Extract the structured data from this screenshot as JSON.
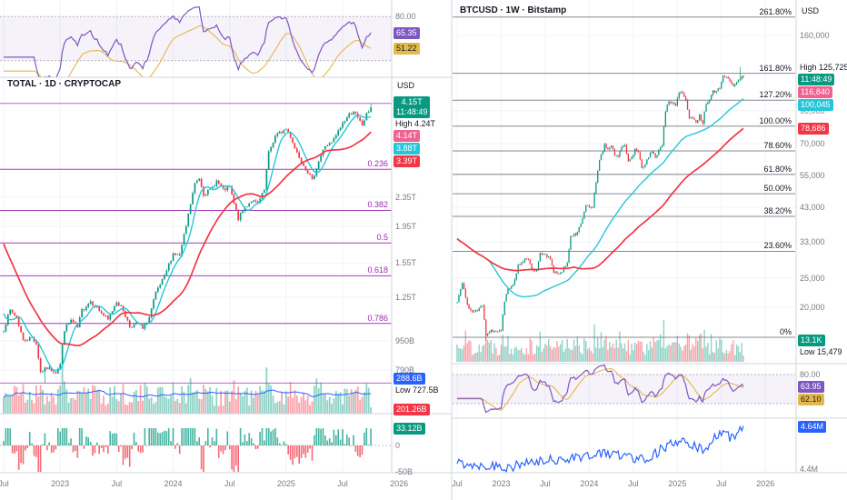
{
  "colors": {
    "up": "#089981",
    "down": "#f23645",
    "volume_up": "rgba(8,153,129,0.45)",
    "volume_down": "rgba(242,54,69,0.45)",
    "delta_up": "rgba(8,153,129,0.75)",
    "delta_down": "rgba(242,54,69,0.75)",
    "ma_fast": "#26c6da",
    "ma_slow": "#f23645",
    "volume_ma": "#2962ff",
    "rsi_line": "#7e57c2",
    "rsi_ma": "#e3b94c",
    "rsi_band": "rgba(126,87,194,0.08)",
    "fib_left": "#9c27b0",
    "fib_right": "#6a6d78",
    "fib_right_text": "#131722",
    "badge_green": "#089981",
    "badge_pink": "#f06292",
    "badge_cyan": "#26c6da",
    "badge_red": "#f23645",
    "badge_blue": "#2962ff",
    "badge_purple": "#7e57c2",
    "badge_yellow": "#e3b94c",
    "badge_teal": "#089981",
    "grid": "#f0f3fa",
    "border": "#d1d4dc",
    "text": "#131722",
    "muted": "#787b86",
    "line_pane": "#2962ff",
    "dashed": "#9598a1"
  },
  "chart_data": [
    {
      "id": "total",
      "type": "candlestick",
      "title": "TOTAL · 1D · CRYPTOCAP",
      "symbol": "TOTAL",
      "interval": "1D",
      "exchange": "CRYPTOCAP",
      "currency": "USD",
      "scale": "log",
      "unit": "trillions USD",
      "y_domain": [
        0.6,
        5.0
      ],
      "weeks": 170,
      "price_anchors": [
        [
          0,
          1.02
        ],
        [
          3,
          1.15
        ],
        [
          6,
          1.1
        ],
        [
          9,
          0.95
        ],
        [
          13,
          0.97
        ],
        [
          15,
          0.93
        ],
        [
          17,
          0.78
        ],
        [
          20,
          0.8
        ],
        [
          24,
          0.78
        ],
        [
          26,
          0.82
        ],
        [
          28,
          1.02
        ],
        [
          31,
          1.08
        ],
        [
          34,
          1.03
        ],
        [
          36,
          1.15
        ],
        [
          40,
          1.22
        ],
        [
          44,
          1.15
        ],
        [
          48,
          1.08
        ],
        [
          52,
          1.22
        ],
        [
          55,
          1.15
        ],
        [
          58,
          1.04
        ],
        [
          62,
          1.06
        ],
        [
          64,
          1.02
        ],
        [
          67,
          1.1
        ],
        [
          70,
          1.28
        ],
        [
          74,
          1.42
        ],
        [
          78,
          1.65
        ],
        [
          81,
          1.62
        ],
        [
          84,
          1.95
        ],
        [
          88,
          2.55
        ],
        [
          90,
          2.65
        ],
        [
          92,
          2.4
        ],
        [
          95,
          2.45
        ],
        [
          98,
          2.6
        ],
        [
          101,
          2.45
        ],
        [
          104,
          2.5
        ],
        [
          106,
          2.25
        ],
        [
          108,
          2.05
        ],
        [
          111,
          2.2
        ],
        [
          114,
          2.3
        ],
        [
          117,
          2.25
        ],
        [
          120,
          2.45
        ],
        [
          122,
          3.1
        ],
        [
          125,
          3.45
        ],
        [
          128,
          3.55
        ],
        [
          130,
          3.6
        ],
        [
          132,
          3.45
        ],
        [
          134,
          3.2
        ],
        [
          137,
          2.95
        ],
        [
          140,
          2.75
        ],
        [
          142,
          2.6
        ],
        [
          145,
          2.95
        ],
        [
          148,
          3.25
        ],
        [
          151,
          3.3
        ],
        [
          154,
          3.55
        ],
        [
          156,
          3.75
        ],
        [
          159,
          3.95
        ],
        [
          161,
          4.05
        ],
        [
          163,
          3.85
        ],
        [
          165,
          3.7
        ],
        [
          167,
          3.95
        ],
        [
          169,
          4.15
        ]
      ],
      "ma_prehistory": [
        [
          0,
          2.9
        ],
        [
          10,
          2.2
        ],
        [
          20,
          1.4
        ],
        [
          29,
          1.05
        ]
      ],
      "high": {
        "label": "High",
        "text": "4.24T",
        "price": 4.24,
        "week": 169
      },
      "low": {
        "label": "Low",
        "text": "727.5B",
        "price": 0.7275,
        "week": 19
      },
      "last": {
        "text": "4.15T",
        "price": 4.15,
        "countdown": "11:48:49"
      },
      "price_line": {
        "text": "4.14T",
        "price": 4.14
      },
      "ma_fast": {
        "text": "3.88T",
        "price": 3.88,
        "window": 7
      },
      "ma_slow": {
        "text": "3.39T",
        "price": 3.39,
        "window": 28
      },
      "volume": {
        "ma_badge": "288.6B",
        "extra_badge": "201.26B"
      },
      "ticks": [
        [
          "2.35T",
          2.35
        ],
        [
          "1.95T",
          1.95
        ],
        [
          "1.55T",
          1.55
        ],
        [
          "1.25T",
          1.25
        ],
        [
          "950B",
          0.95
        ],
        [
          "790B",
          0.79
        ]
      ],
      "fib": {
        "levels": [
          [
            "0.236",
            2.8
          ],
          [
            "0.382",
            2.16
          ],
          [
            "0.5",
            1.76
          ],
          [
            "0.618",
            1.43
          ],
          [
            "0.786",
            1.06
          ]
        ],
        "edges": [
          4.24,
          0.7275
        ]
      },
      "rsi": {
        "tick": "80.00",
        "value": 65.35,
        "value_text": "65.35",
        "ma_value": 51.22,
        "ma_text": "51.22"
      },
      "delta": {
        "badge_text": "33.12B",
        "badge_value": 33.12,
        "zero_tick": "0",
        "min_tick": "-50B"
      },
      "time_labels": [
        [
          "Jul",
          0
        ],
        [
          "2023",
          26
        ],
        [
          "Jul",
          52
        ],
        [
          "2024",
          78
        ],
        [
          "Jul",
          104
        ],
        [
          "2025",
          130
        ],
        [
          "Jul",
          156
        ],
        [
          "2026",
          182
        ]
      ]
    },
    {
      "id": "btcusd",
      "type": "candlestick",
      "title": "BTCUSD · 1W · Bitstamp",
      "symbol": "BTCUSD",
      "interval": "1W",
      "exchange": "Bitstamp",
      "currency": "USD",
      "scale": "log",
      "unit": "thousands USD",
      "y_domain": [
        13.0,
        210
      ],
      "weeks": 170,
      "price_anchors": [
        [
          0,
          20.8
        ],
        [
          3,
          24.0
        ],
        [
          5,
          21.5
        ],
        [
          7,
          19.8
        ],
        [
          9,
          19.3
        ],
        [
          12,
          19.5
        ],
        [
          15,
          20.5
        ],
        [
          17,
          16.2
        ],
        [
          20,
          16.8
        ],
        [
          23,
          16.6
        ],
        [
          26,
          16.6
        ],
        [
          28,
          21.0
        ],
        [
          30,
          23.2
        ],
        [
          33,
          23.5
        ],
        [
          36,
          27.5
        ],
        [
          39,
          28.3
        ],
        [
          41,
          29.3
        ],
        [
          44,
          27.0
        ],
        [
          47,
          26.5
        ],
        [
          49,
          30.3
        ],
        [
          52,
          29.9
        ],
        [
          55,
          29.2
        ],
        [
          57,
          26.0
        ],
        [
          60,
          25.9
        ],
        [
          62,
          26.5
        ],
        [
          65,
          27.9
        ],
        [
          67,
          34.5
        ],
        [
          70,
          35.0
        ],
        [
          73,
          37.8
        ],
        [
          76,
          43.8
        ],
        [
          78,
          42.6
        ],
        [
          80,
          43.0
        ],
        [
          82,
          51.8
        ],
        [
          84,
          62.0
        ],
        [
          87,
          69.0
        ],
        [
          89,
          67.2
        ],
        [
          91,
          69.6
        ],
        [
          93,
          63.8
        ],
        [
          95,
          64.0
        ],
        [
          97,
          67.8
        ],
        [
          99,
          68.5
        ],
        [
          101,
          61.0
        ],
        [
          103,
          63.0
        ],
        [
          105,
          67.0
        ],
        [
          107,
          64.6
        ],
        [
          109,
          58.7
        ],
        [
          111,
          59.4
        ],
        [
          113,
          63.2
        ],
        [
          115,
          65.9
        ],
        [
          117,
          62.7
        ],
        [
          119,
          67.0
        ],
        [
          121,
          69.0
        ],
        [
          123,
          90.0
        ],
        [
          125,
          97.0
        ],
        [
          127,
          95.9
        ],
        [
          129,
          94.3
        ],
        [
          131,
          102.1
        ],
        [
          133,
          104.5
        ],
        [
          135,
          96.5
        ],
        [
          137,
          84.7
        ],
        [
          139,
          86.0
        ],
        [
          141,
          82.1
        ],
        [
          143,
          86.8
        ],
        [
          145,
          82.5
        ],
        [
          147,
          94.2
        ],
        [
          149,
          97.0
        ],
        [
          151,
          103.8
        ],
        [
          153,
          105.6
        ],
        [
          155,
          107.3
        ],
        [
          157,
          117.5
        ],
        [
          159,
          118.0
        ],
        [
          161,
          113.4
        ],
        [
          163,
          108.2
        ],
        [
          165,
          112.4
        ],
        [
          167,
          115.0
        ],
        [
          169,
          116.8
        ]
      ],
      "ma_prehistory": [
        [
          0,
          45
        ],
        [
          10,
          40
        ],
        [
          20,
          29
        ],
        [
          29,
          21
        ]
      ],
      "high": {
        "label": "High",
        "text": "125,725",
        "price": 125.725,
        "week": 167
      },
      "low": {
        "label": "Low",
        "text": "15,479",
        "price": 15.479,
        "week": 17
      },
      "last": {
        "text": "116,840",
        "price": 116.84,
        "countdown": "11:48:49"
      },
      "ma_fast": {
        "text": "100,045",
        "price": 100.045,
        "window": 50
      },
      "ma_slow": {
        "text": "78,686",
        "price": 78.686,
        "window": 100
      },
      "volume": {
        "badge": "13.1K"
      },
      "ticks": [
        [
          "160,000",
          160
        ],
        [
          "90,000",
          90
        ],
        [
          "70,000",
          70
        ],
        [
          "55,000",
          55
        ],
        [
          "43,000",
          43
        ],
        [
          "33,000",
          33
        ],
        [
          "25,000",
          25
        ],
        [
          "20,000",
          20
        ]
      ],
      "fib": {
        "levels": [
          [
            "261.80%",
            184.4
          ],
          [
            "161.80%",
            119.9
          ],
          [
            "127.20%",
            97.5
          ],
          [
            "100.00%",
            80.0
          ],
          [
            "78.60%",
            66.2
          ],
          [
            "61.80%",
            55.3
          ],
          [
            "50.00%",
            47.7
          ],
          [
            "38.20%",
            40.1
          ],
          [
            "23.60%",
            30.7
          ],
          [
            "0%",
            15.9
          ]
        ]
      },
      "rsi": {
        "tick": "80.00",
        "value": 63.95,
        "value_text": "63.95",
        "ma_value": 62.1,
        "ma_text": "62.10"
      },
      "line_pane": {
        "badge_text": "4.64M",
        "badge_value": 4.64,
        "tick_text": "4.4M",
        "tick_value": 4.42,
        "range": [
          4.4,
          4.68
        ],
        "anchors": [
          [
            0,
            4.45
          ],
          [
            30,
            4.43
          ],
          [
            60,
            4.47
          ],
          [
            90,
            4.5
          ],
          [
            110,
            4.47
          ],
          [
            130,
            4.56
          ],
          [
            145,
            4.52
          ],
          [
            155,
            4.6
          ],
          [
            162,
            4.58
          ],
          [
            169,
            4.64
          ]
        ]
      },
      "time_labels": [
        [
          "Jul",
          0
        ],
        [
          "2023",
          26
        ],
        [
          "Jul",
          52
        ],
        [
          "2024",
          78
        ],
        [
          "Jul",
          104
        ],
        [
          "2025",
          130
        ],
        [
          "Jul",
          156
        ],
        [
          "2026",
          182
        ]
      ]
    }
  ]
}
